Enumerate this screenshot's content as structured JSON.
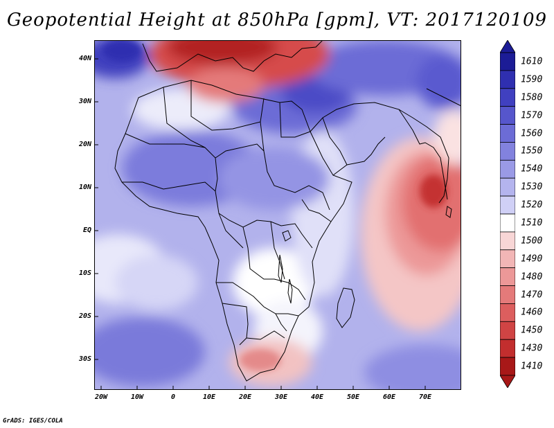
{
  "title": "Geopotential Height at 850hPa [gpm], VT: 2017120109",
  "credit": "GrADS: IGES/COLA",
  "lat_labels": [
    "40N",
    "30N",
    "20N",
    "10N",
    "EQ",
    "10S",
    "20S",
    "30S"
  ],
  "lon_labels": [
    "20W",
    "10W",
    "0",
    "10E",
    "20E",
    "30E",
    "40E",
    "50E",
    "60E",
    "70E"
  ],
  "colorbar": {
    "labels": [
      "1610",
      "1590",
      "1580",
      "1570",
      "1560",
      "1550",
      "1540",
      "1530",
      "1520",
      "1510",
      "1500",
      "1490",
      "1480",
      "1470",
      "1460",
      "1450",
      "1430",
      "1410"
    ],
    "colors": [
      "#1c1c96",
      "#2f2fb0",
      "#4040c0",
      "#5656cc",
      "#6c6cd6",
      "#8282de",
      "#9a9ae6",
      "#b4b4ee",
      "#d0d0f6",
      "#ffffff",
      "#f8d6d6",
      "#f2b6b6",
      "#ec9898",
      "#e47a7a",
      "#dc5e5e",
      "#d04444",
      "#c22e2e",
      "#a81818"
    ],
    "top_color": "#1c1c96",
    "bottom_color": "#a81818"
  }
}
